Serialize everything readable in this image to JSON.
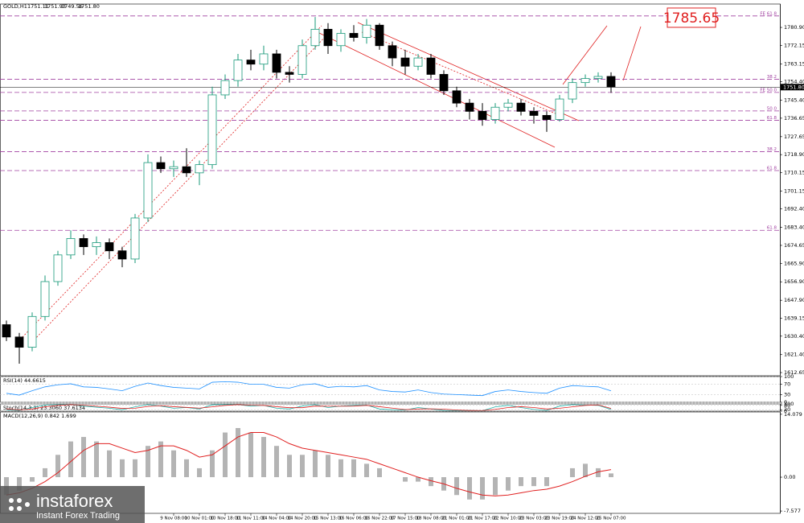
{
  "chart_data": [
    {
      "type": "candlestick",
      "symbol": "GOLD,H1",
      "header_values": [
        "1751.11",
        "1751.93",
        "1749.56",
        "1751.80"
      ],
      "categories": [
        null,
        null,
        null,
        null,
        null,
        null,
        null,
        null,
        null,
        null,
        null,
        null,
        null,
        "9 Nov 08:00",
        null,
        "10 Nov 01:00",
        null,
        "10 Nov 18:00",
        null,
        "11 Nov 11:00",
        null,
        "14 Nov 04:00",
        null,
        "14 Nov 20:00",
        null,
        "15 Nov 13:00",
        null,
        "16 Nov 06:00",
        null,
        "16 Nov 22:00",
        null,
        "17 Nov 15:00",
        null,
        "18 Nov 08:00",
        null,
        "21 Nov 01:00",
        null,
        "21 Nov 17:00",
        null,
        "22 Nov 10:00",
        null,
        "23 Nov 03:00",
        null,
        "23 Nov 19:00",
        null,
        "24 Nov 12:00",
        null,
        "25 Nov 07:00"
      ],
      "open": [
        1636,
        1630,
        1625,
        1640,
        1657,
        1670,
        1678,
        1674,
        1676,
        1672,
        1668,
        1688,
        1715,
        1712,
        1713,
        1710,
        1714,
        1748,
        1755,
        1765,
        1763,
        1768,
        1759,
        1758,
        1772,
        1780,
        1772,
        1778,
        1776,
        1782,
        1772,
        1766,
        1762,
        1766,
        1758,
        1750,
        1744,
        1740,
        1736,
        1742,
        1744,
        1740,
        1738,
        1736,
        1746,
        1754,
        1756,
        1757
      ],
      "high": [
        1638,
        1632,
        1642,
        1660,
        1672,
        1682,
        1680,
        1679,
        1678,
        1674,
        1690,
        1719,
        1718,
        1716,
        1722,
        1716,
        1752,
        1758,
        1768,
        1770,
        1772,
        1770,
        1762,
        1775,
        1786,
        1783,
        1780,
        1782,
        1785,
        1783,
        1774,
        1770,
        1768,
        1768,
        1760,
        1752,
        1746,
        1744,
        1744,
        1746,
        1746,
        1742,
        1740,
        1748,
        1756,
        1758,
        1759,
        1759
      ],
      "low": [
        1628,
        1617,
        1623,
        1638,
        1655,
        1668,
        1670,
        1670,
        1668,
        1664,
        1666,
        1686,
        1710,
        1708,
        1708,
        1704,
        1712,
        1746,
        1752,
        1760,
        1760,
        1756,
        1754,
        1756,
        1770,
        1768,
        1769,
        1774,
        1773,
        1770,
        1762,
        1758,
        1760,
        1756,
        1748,
        1742,
        1736,
        1733,
        1734,
        1740,
        1738,
        1734,
        1730,
        1735,
        1744,
        1752,
        1754,
        1749
      ],
      "close": [
        1630,
        1625,
        1640,
        1657,
        1670,
        1678,
        1674,
        1676,
        1672,
        1668,
        1688,
        1715,
        1712,
        1713,
        1710,
        1714,
        1748,
        1755,
        1765,
        1763,
        1768,
        1759,
        1758,
        1772,
        1780,
        1772,
        1778,
        1776,
        1782,
        1772,
        1766,
        1762,
        1766,
        1758,
        1750,
        1744,
        1740,
        1736,
        1742,
        1744,
        1740,
        1738,
        1736,
        1746,
        1754,
        1756,
        1757,
        1751.8
      ],
      "up_color": "#1a9a7a",
      "down_color": "#000000",
      "level_color": "#a040a0",
      "ylim": [
        1611.1,
        1792.3
      ],
      "yticks": [
        {
          "value": 1780.9,
          "label": "1780.90"
        },
        1772.15,
        1763.15,
        {
          "value": 1754.4,
          "label": "1754.40"
        },
        {
          "value": 1745.4,
          "label": "1745.40"
        },
        1736.65,
        1727.65,
        {
          "value": 1718.9,
          "label": "1718.90"
        },
        1710.15,
        1701.15,
        {
          "value": 1692.4,
          "label": "1692.40"
        },
        {
          "value": 1683.4,
          "label": "1683.40"
        },
        1674.65,
        {
          "value": 1665.9,
          "label": "1665.90"
        },
        {
          "value": 1656.9,
          "label": "1656.90"
        },
        {
          "value": 1647.9,
          "label": "1647.90"
        },
        1639.15,
        {
          "value": 1630.4,
          "label": "1630.40"
        },
        {
          "value": 1621.4,
          "label": "1621.40"
        },
        1612.65
      ],
      "levels": [
        {
          "value": 1786.5,
          "label": "FE 61.8"
        },
        {
          "value": 1755.6,
          "label": "38.2"
        },
        {
          "value": 1749.2,
          "label": "FE 50.0"
        },
        {
          "value": 1740.2,
          "label": "50.0"
        },
        {
          "value": 1735.6,
          "label": "61.8"
        },
        {
          "value": 1720.3,
          "label": "38.2"
        },
        {
          "value": 1711.1,
          "label": "61.8"
        },
        {
          "value": 1682.0,
          "label": "61.8"
        }
      ],
      "target": 1785.65,
      "target_color": "#e02020",
      "current_price": {
        "value": 1751.8,
        "label": "1751.80"
      }
    },
    {
      "type": "line",
      "title": "RSI(14) 44.6615",
      "color": "#1e90ff",
      "ylim": [
        0,
        100
      ],
      "yticks": [
        0,
        30,
        70,
        100
      ],
      "values": [
        35,
        28,
        45,
        60,
        68,
        72,
        60,
        58,
        52,
        45,
        62,
        75,
        65,
        58,
        55,
        52,
        78,
        80,
        78,
        70,
        70,
        58,
        55,
        68,
        72,
        58,
        62,
        60,
        65,
        48,
        42,
        40,
        48,
        38,
        32,
        30,
        28,
        26,
        42,
        48,
        42,
        38,
        35,
        55,
        65,
        62,
        60,
        44.6615
      ]
    },
    {
      "type": "line",
      "title": "Stoch(14,3,3) 23.3060 37.6134",
      "ylim": [
        0,
        100
      ],
      "yticks": [
        0,
        20,
        80,
        100
      ],
      "series": [
        {
          "color": "#20b2aa",
          "values": [
            20,
            10,
            50,
            85,
            90,
            92,
            70,
            55,
            40,
            20,
            60,
            90,
            70,
            40,
            50,
            30,
            88,
            92,
            90,
            70,
            80,
            40,
            30,
            70,
            90,
            50,
            70,
            80,
            85,
            30,
            20,
            15,
            50,
            30,
            10,
            8,
            10,
            5,
            60,
            80,
            50,
            25,
            10,
            70,
            90,
            85,
            80,
            23.306
          ]
        },
        {
          "color": "#e02020",
          "values": [
            30,
            18,
            30,
            60,
            80,
            90,
            82,
            68,
            55,
            38,
            40,
            65,
            75,
            62,
            52,
            42,
            60,
            80,
            90,
            82,
            80,
            62,
            48,
            48,
            70,
            68,
            68,
            70,
            80,
            62,
            42,
            22,
            30,
            32,
            28,
            15,
            10,
            8,
            25,
            50,
            62,
            50,
            30,
            40,
            60,
            80,
            86,
            37.6134
          ]
        }
      ]
    },
    {
      "type": "macd",
      "title": "MACD(12,26,9) 0.842 1.699",
      "color": "#b4b4b4",
      "signal_color": "#e02020",
      "ylim": [
        -8.1,
        14.6
      ],
      "yticks": [
        -7.577,
        {
          "value": 0,
          "label": "0.00"
        },
        14.079
      ],
      "values": [
        -4,
        -3,
        -1,
        2,
        5,
        8,
        9,
        8,
        6,
        4,
        4,
        7,
        8,
        6,
        4,
        2,
        6,
        10,
        11,
        10,
        9,
        7,
        5,
        5,
        6,
        5,
        4,
        4,
        3,
        2,
        0,
        -1,
        -1,
        -2,
        -3,
        -4,
        -5,
        -5,
        -4,
        -3,
        -2,
        -2,
        -2,
        0,
        2,
        3,
        2,
        0.842
      ],
      "signal": [
        -4,
        -3.5,
        -2.5,
        -1,
        1,
        3.5,
        6,
        7.5,
        7.5,
        6.5,
        5.5,
        6,
        7,
        7,
        6,
        4.5,
        5,
        7,
        9,
        10,
        10,
        9,
        7.5,
        6.5,
        6,
        5.5,
        5,
        4.5,
        4,
        3,
        2,
        1,
        0,
        -0.8,
        -1.5,
        -2.5,
        -3.3,
        -4,
        -4.2,
        -4,
        -3.5,
        -3,
        -2.7,
        -2,
        -1,
        0.2,
        1.2,
        1.699
      ]
    }
  ],
  "watermark": {
    "name": "instaforex",
    "tagline": "Instant Forex Trading"
  }
}
